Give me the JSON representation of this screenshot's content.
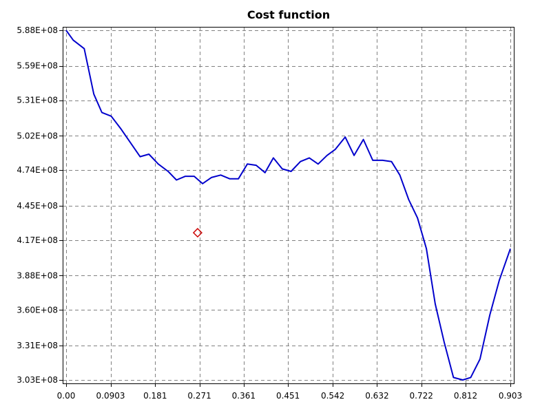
{
  "chart_data": {
    "type": "line",
    "title": "Cost function",
    "xlabel": "",
    "ylabel": "",
    "grid": true,
    "grid_style": "dashed",
    "colors": {
      "line": "#0000cc",
      "marker": "#cc0000",
      "grid": "#808080",
      "frame": "#000000"
    },
    "xlim": [
      0.0,
      0.903
    ],
    "ylim": [
      303000000,
      588000000
    ],
    "x_ticks": [
      0.0,
      0.0903,
      0.181,
      0.271,
      0.361,
      0.451,
      0.542,
      0.632,
      0.722,
      0.812,
      0.903
    ],
    "x_tick_labels": [
      "0.00",
      "0.0903",
      "0.181",
      "0.271",
      "0.361",
      "0.451",
      "0.542",
      "0.632",
      "0.722",
      "0.812",
      "0.903"
    ],
    "y_ticks": [
      303000000,
      331000000,
      360000000,
      388000000,
      417000000,
      445000000,
      474000000,
      502000000,
      531000000,
      559000000,
      588000000
    ],
    "y_tick_labels": [
      "3.03E+08",
      "3.31E+08",
      "3.60E+08",
      "3.88E+08",
      "4.17E+08",
      "4.45E+08",
      "4.74E+08",
      "5.02E+08",
      "5.31E+08",
      "5.59E+08",
      "5.88E+08"
    ],
    "series": [
      {
        "style": "line",
        "x": [
          0.0,
          0.0144,
          0.0368,
          0.0563,
          0.0727,
          0.0917,
          0.1107,
          0.1503,
          0.1683,
          0.1873,
          0.2073,
          0.2243,
          0.2423,
          0.2603,
          0.2773,
          0.2953,
          0.3143,
          0.3323,
          0.3503,
          0.3683,
          0.3863,
          0.4043,
          0.4213,
          0.4393,
          0.4573,
          0.4763,
          0.4943,
          0.5123,
          0.5303,
          0.5473,
          0.5673,
          0.5853,
          0.6043,
          0.6233,
          0.6433,
          0.6613,
          0.6783,
          0.6963,
          0.7143,
          0.7323,
          0.7503,
          0.7683,
          0.7873,
          0.8063,
          0.8223,
          0.8413,
          0.8613,
          0.8803,
          0.903
        ],
        "y": [
          588000000,
          580000000,
          573000000,
          536000000,
          521000000,
          518000000,
          508000000,
          485000000,
          487000000,
          479000000,
          473000000,
          466000000,
          469000000,
          469000000,
          463000000,
          468000000,
          470000000,
          467000000,
          467000000,
          479000000,
          478000000,
          472000000,
          484000000,
          475000000,
          473000000,
          481000000,
          484000000,
          479000000,
          486000000,
          491000000,
          501000000,
          486000000,
          499000000,
          482000000,
          482000000,
          481000000,
          470000000,
          450000000,
          435000000,
          410000000,
          365000000,
          334000000,
          305000000,
          303000000,
          305000000,
          320000000,
          356000000,
          384000000,
          410000000
        ]
      },
      {
        "style": "marker",
        "marker": "diamond",
        "x": [
          0.2673
        ],
        "y": [
          423000000
        ]
      }
    ]
  }
}
